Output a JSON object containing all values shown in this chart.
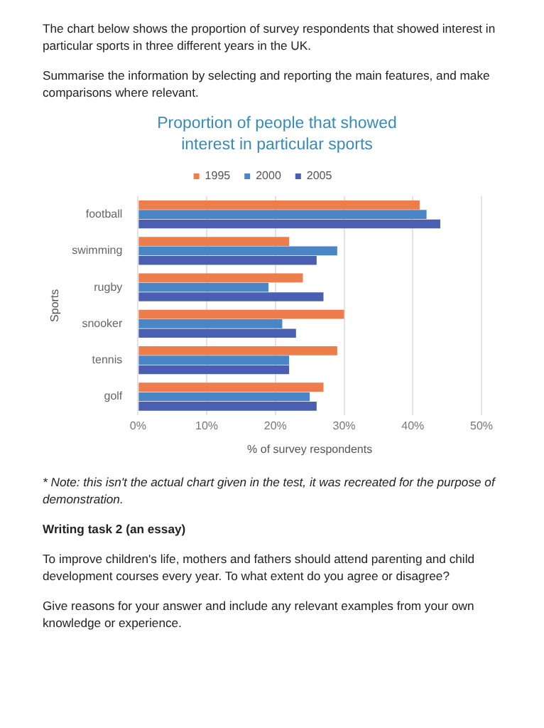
{
  "chart_data": {
    "type": "bar",
    "orientation": "horizontal",
    "title": "Proportion of people that showed interest in particular sports",
    "xlabel": "% of survey respondents",
    "ylabel": "Sports",
    "categories": [
      "football",
      "swimming",
      "rugby",
      "snooker",
      "tennis",
      "golf"
    ],
    "series": [
      {
        "name": "1995",
        "color": "#ed7d4a",
        "values": [
          41,
          22,
          24,
          30,
          29,
          27
        ]
      },
      {
        "name": "2000",
        "color": "#4a86c5",
        "values": [
          42,
          29,
          19,
          21,
          22,
          25
        ]
      },
      {
        "name": "2005",
        "color": "#4a5fb0",
        "values": [
          44,
          26,
          27,
          23,
          22,
          26
        ]
      }
    ],
    "xlim": [
      0,
      50
    ],
    "xticks": [
      {
        "value": 0,
        "label": "0%"
      },
      {
        "value": 10,
        "label": "10%"
      },
      {
        "value": 20,
        "label": "20%"
      },
      {
        "value": 30,
        "label": "30%"
      },
      {
        "value": 40,
        "label": "40%"
      },
      {
        "value": 50,
        "label": "50%"
      }
    ],
    "grid": "x",
    "legend": "top",
    "annotations": [
      "The chart below shows the proportion of survey respondents that showed interest in particular sports in three different years in the UK.",
      "Summarise the information by selecting and reporting the main features, and make comparisons where relevant.",
      "* Note: this isn't the actual chart given in the test, it was recreated for the purpose of demonstration.",
      "Writing task 2 (an essay)",
      "To improve children's life, mothers and fathers should attend parenting and child development courses every year. To what extent do you agree or disagree?",
      "Give reasons for your answer and include any relevant examples from your own knowledge or experience."
    ]
  }
}
